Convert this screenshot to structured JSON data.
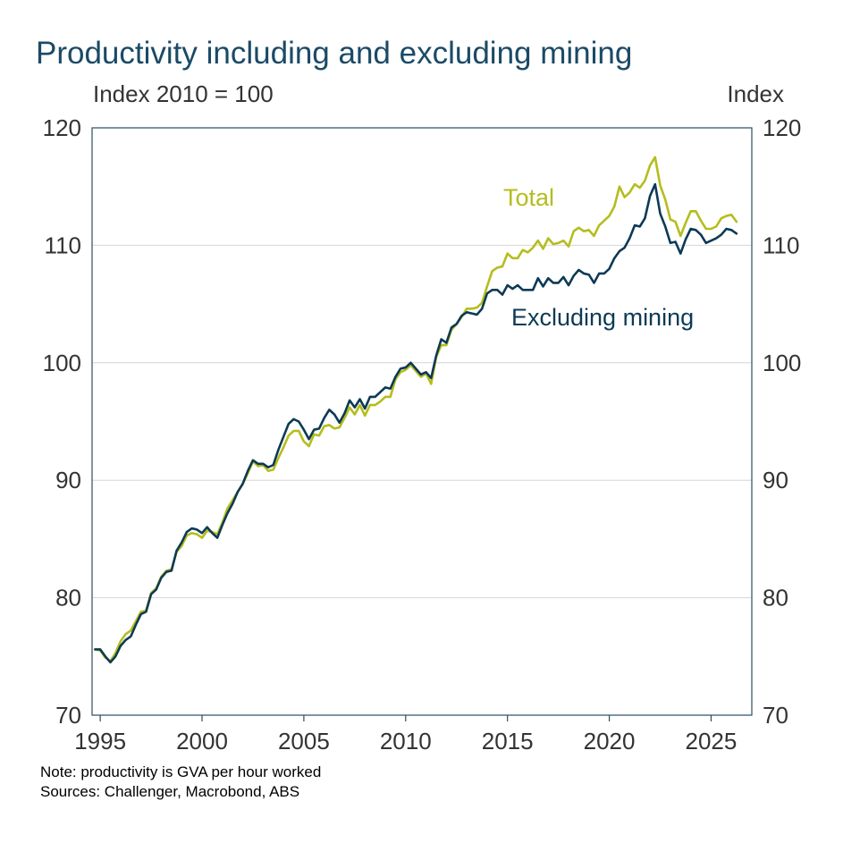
{
  "chart_data": {
    "type": "line",
    "title": "Productivity including and excluding mining",
    "left_axis_unit": "Index 2010 = 100",
    "right_axis_unit": "Index",
    "ylim": [
      70,
      120
    ],
    "yticks": [
      "70",
      "80",
      "90",
      "100",
      "110",
      "120"
    ],
    "xlim": [
      1994.6,
      2027.0
    ],
    "xticks": [
      "1995",
      "2000",
      "2005",
      "2010",
      "2015",
      "2020",
      "2025"
    ],
    "grid": true,
    "legend": "inline labels",
    "series": [
      {
        "name": "Total",
        "color": "#b5bd1e",
        "points": [
          [
            1994.75,
            75.6
          ],
          [
            1995.0,
            75.5
          ],
          [
            1995.25,
            74.9
          ],
          [
            1995.5,
            74.6
          ],
          [
            1995.75,
            75.3
          ],
          [
            1996.0,
            76.3
          ],
          [
            1996.25,
            76.9
          ],
          [
            1996.5,
            77.2
          ],
          [
            1996.75,
            78.0
          ],
          [
            1997.0,
            78.8
          ],
          [
            1997.25,
            78.9
          ],
          [
            1997.5,
            80.4
          ],
          [
            1997.75,
            80.8
          ],
          [
            1998.0,
            81.8
          ],
          [
            1998.25,
            82.3
          ],
          [
            1998.5,
            82.4
          ],
          [
            1998.75,
            83.9
          ],
          [
            1999.0,
            84.4
          ],
          [
            1999.25,
            85.3
          ],
          [
            1999.5,
            85.5
          ],
          [
            1999.75,
            85.4
          ],
          [
            2000.0,
            85.1
          ],
          [
            2000.25,
            85.7
          ],
          [
            2000.5,
            85.6
          ],
          [
            2000.75,
            85.4
          ],
          [
            2001.0,
            86.4
          ],
          [
            2001.25,
            87.6
          ],
          [
            2001.5,
            88.3
          ],
          [
            2001.75,
            89.0
          ],
          [
            2002.0,
            89.7
          ],
          [
            2002.25,
            90.6
          ],
          [
            2002.5,
            91.6
          ],
          [
            2002.75,
            91.2
          ],
          [
            2003.0,
            91.3
          ],
          [
            2003.25,
            90.8
          ],
          [
            2003.5,
            90.9
          ],
          [
            2003.75,
            91.9
          ],
          [
            2004.0,
            92.8
          ],
          [
            2004.25,
            93.8
          ],
          [
            2004.5,
            94.2
          ],
          [
            2004.75,
            94.2
          ],
          [
            2005.0,
            93.3
          ],
          [
            2005.25,
            92.9
          ],
          [
            2005.5,
            93.9
          ],
          [
            2005.75,
            93.8
          ],
          [
            2006.0,
            94.6
          ],
          [
            2006.25,
            94.7
          ],
          [
            2006.5,
            94.4
          ],
          [
            2006.75,
            94.5
          ],
          [
            2007.0,
            95.3
          ],
          [
            2007.25,
            96.2
          ],
          [
            2007.5,
            95.6
          ],
          [
            2007.75,
            96.4
          ],
          [
            2008.0,
            95.5
          ],
          [
            2008.25,
            96.4
          ],
          [
            2008.5,
            96.4
          ],
          [
            2008.75,
            96.7
          ],
          [
            2009.0,
            97.1
          ],
          [
            2009.25,
            97.1
          ],
          [
            2009.5,
            98.6
          ],
          [
            2009.75,
            99.2
          ],
          [
            2010.0,
            99.4
          ],
          [
            2010.25,
            99.8
          ],
          [
            2010.5,
            99.3
          ],
          [
            2010.75,
            98.8
          ],
          [
            2011.0,
            99.1
          ],
          [
            2011.25,
            98.2
          ],
          [
            2011.5,
            100.5
          ],
          [
            2011.75,
            101.5
          ],
          [
            2012.0,
            101.5
          ],
          [
            2012.25,
            102.8
          ],
          [
            2012.5,
            103.3
          ],
          [
            2012.75,
            103.9
          ],
          [
            2013.0,
            104.6
          ],
          [
            2013.25,
            104.6
          ],
          [
            2013.5,
            104.7
          ],
          [
            2013.75,
            105.1
          ],
          [
            2014.0,
            106.5
          ],
          [
            2014.25,
            107.8
          ],
          [
            2014.5,
            108.1
          ],
          [
            2014.75,
            108.2
          ],
          [
            2015.0,
            109.3
          ],
          [
            2015.25,
            108.9
          ],
          [
            2015.5,
            108.9
          ],
          [
            2015.75,
            109.6
          ],
          [
            2016.0,
            109.4
          ],
          [
            2016.25,
            109.8
          ],
          [
            2016.5,
            110.4
          ],
          [
            2016.75,
            109.7
          ],
          [
            2017.0,
            110.6
          ],
          [
            2017.25,
            110.1
          ],
          [
            2017.5,
            110.2
          ],
          [
            2017.75,
            110.4
          ],
          [
            2018.0,
            109.9
          ],
          [
            2018.25,
            111.2
          ],
          [
            2018.5,
            111.5
          ],
          [
            2018.75,
            111.2
          ],
          [
            2019.0,
            111.3
          ],
          [
            2019.25,
            110.8
          ],
          [
            2019.5,
            111.7
          ],
          [
            2019.75,
            112.1
          ],
          [
            2020.0,
            112.5
          ],
          [
            2020.25,
            113.3
          ],
          [
            2020.5,
            115.0
          ],
          [
            2020.75,
            114.1
          ],
          [
            2021.0,
            114.5
          ],
          [
            2021.25,
            115.2
          ],
          [
            2021.5,
            114.9
          ],
          [
            2021.75,
            115.5
          ],
          [
            2022.0,
            116.8
          ],
          [
            2022.25,
            117.5
          ],
          [
            2022.5,
            115.1
          ],
          [
            2022.75,
            113.9
          ],
          [
            2023.0,
            112.2
          ],
          [
            2023.25,
            112.0
          ],
          [
            2023.5,
            110.8
          ],
          [
            2023.75,
            111.9
          ],
          [
            2024.0,
            112.9
          ],
          [
            2024.25,
            112.9
          ],
          [
            2024.5,
            112.1
          ],
          [
            2024.75,
            111.4
          ],
          [
            2025.0,
            111.4
          ],
          [
            2025.25,
            111.6
          ],
          [
            2025.5,
            112.3
          ],
          [
            2025.75,
            112.5
          ],
          [
            2026.0,
            112.6
          ],
          [
            2026.25,
            112.0
          ]
        ]
      },
      {
        "name": "Excluding mining",
        "color": "#0c3a55",
        "points": [
          [
            1994.75,
            75.6
          ],
          [
            1995.0,
            75.6
          ],
          [
            1995.25,
            75.0
          ],
          [
            1995.5,
            74.5
          ],
          [
            1995.75,
            75.0
          ],
          [
            1996.0,
            75.9
          ],
          [
            1996.25,
            76.4
          ],
          [
            1996.5,
            76.7
          ],
          [
            1996.75,
            77.7
          ],
          [
            1997.0,
            78.6
          ],
          [
            1997.25,
            78.8
          ],
          [
            1997.5,
            80.3
          ],
          [
            1997.75,
            80.7
          ],
          [
            1998.0,
            81.7
          ],
          [
            1998.25,
            82.2
          ],
          [
            1998.5,
            82.3
          ],
          [
            1998.75,
            84.0
          ],
          [
            1999.0,
            84.7
          ],
          [
            1999.25,
            85.6
          ],
          [
            1999.5,
            85.9
          ],
          [
            1999.75,
            85.8
          ],
          [
            2000.0,
            85.5
          ],
          [
            2000.25,
            86.0
          ],
          [
            2000.5,
            85.5
          ],
          [
            2000.75,
            85.1
          ],
          [
            2001.0,
            86.2
          ],
          [
            2001.25,
            87.2
          ],
          [
            2001.5,
            88.0
          ],
          [
            2001.75,
            89.0
          ],
          [
            2002.0,
            89.7
          ],
          [
            2002.25,
            90.8
          ],
          [
            2002.5,
            91.7
          ],
          [
            2002.75,
            91.4
          ],
          [
            2003.0,
            91.4
          ],
          [
            2003.25,
            91.1
          ],
          [
            2003.5,
            91.3
          ],
          [
            2003.75,
            92.6
          ],
          [
            2004.0,
            93.7
          ],
          [
            2004.25,
            94.8
          ],
          [
            2004.5,
            95.2
          ],
          [
            2004.75,
            95.0
          ],
          [
            2005.0,
            94.3
          ],
          [
            2005.25,
            93.5
          ],
          [
            2005.5,
            94.3
          ],
          [
            2005.75,
            94.4
          ],
          [
            2006.0,
            95.3
          ],
          [
            2006.25,
            96.0
          ],
          [
            2006.5,
            95.6
          ],
          [
            2006.75,
            94.9
          ],
          [
            2007.0,
            95.7
          ],
          [
            2007.25,
            96.8
          ],
          [
            2007.5,
            96.2
          ],
          [
            2007.75,
            96.9
          ],
          [
            2008.0,
            96.1
          ],
          [
            2008.25,
            97.1
          ],
          [
            2008.5,
            97.1
          ],
          [
            2008.75,
            97.5
          ],
          [
            2009.0,
            97.9
          ],
          [
            2009.25,
            97.8
          ],
          [
            2009.5,
            98.8
          ],
          [
            2009.75,
            99.5
          ],
          [
            2010.0,
            99.6
          ],
          [
            2010.25,
            100.0
          ],
          [
            2010.5,
            99.5
          ],
          [
            2010.75,
            99.0
          ],
          [
            2011.0,
            99.2
          ],
          [
            2011.25,
            98.7
          ],
          [
            2011.5,
            100.6
          ],
          [
            2011.75,
            102.0
          ],
          [
            2012.0,
            101.7
          ],
          [
            2012.25,
            103.0
          ],
          [
            2012.5,
            103.3
          ],
          [
            2012.75,
            104.0
          ],
          [
            2013.0,
            104.3
          ],
          [
            2013.25,
            104.2
          ],
          [
            2013.5,
            104.1
          ],
          [
            2013.75,
            104.6
          ],
          [
            2014.0,
            105.9
          ],
          [
            2014.25,
            106.2
          ],
          [
            2014.5,
            106.2
          ],
          [
            2014.75,
            105.8
          ],
          [
            2015.0,
            106.6
          ],
          [
            2015.25,
            106.3
          ],
          [
            2015.5,
            106.6
          ],
          [
            2015.75,
            106.2
          ],
          [
            2016.0,
            106.2
          ],
          [
            2016.25,
            106.2
          ],
          [
            2016.5,
            107.2
          ],
          [
            2016.75,
            106.5
          ],
          [
            2017.0,
            107.2
          ],
          [
            2017.25,
            106.8
          ],
          [
            2017.5,
            106.8
          ],
          [
            2017.75,
            107.3
          ],
          [
            2018.0,
            106.6
          ],
          [
            2018.25,
            107.4
          ],
          [
            2018.5,
            107.9
          ],
          [
            2018.75,
            107.6
          ],
          [
            2019.0,
            107.5
          ],
          [
            2019.25,
            106.8
          ],
          [
            2019.5,
            107.6
          ],
          [
            2019.75,
            107.6
          ],
          [
            2020.0,
            108.0
          ],
          [
            2020.25,
            108.9
          ],
          [
            2020.5,
            109.5
          ],
          [
            2020.75,
            109.8
          ],
          [
            2021.0,
            110.6
          ],
          [
            2021.25,
            111.7
          ],
          [
            2021.5,
            111.6
          ],
          [
            2021.75,
            112.3
          ],
          [
            2022.0,
            114.2
          ],
          [
            2022.25,
            115.2
          ],
          [
            2022.5,
            112.7
          ],
          [
            2022.75,
            111.6
          ],
          [
            2023.0,
            110.2
          ],
          [
            2023.25,
            110.3
          ],
          [
            2023.5,
            109.3
          ],
          [
            2023.75,
            110.5
          ],
          [
            2024.0,
            111.4
          ],
          [
            2024.25,
            111.3
          ],
          [
            2024.5,
            110.9
          ],
          [
            2024.75,
            110.2
          ],
          [
            2025.0,
            110.4
          ],
          [
            2025.25,
            110.6
          ],
          [
            2025.5,
            110.9
          ],
          [
            2025.75,
            111.4
          ],
          [
            2026.0,
            111.3
          ],
          [
            2026.25,
            111.0
          ]
        ]
      }
    ],
    "annotations": {
      "total_label": "Total",
      "ex_mining_label": "Excluding mining"
    },
    "note": "Note: productivity is GVA per hour worked",
    "sources": "Sources: Challenger, Macrobond, ABS"
  }
}
